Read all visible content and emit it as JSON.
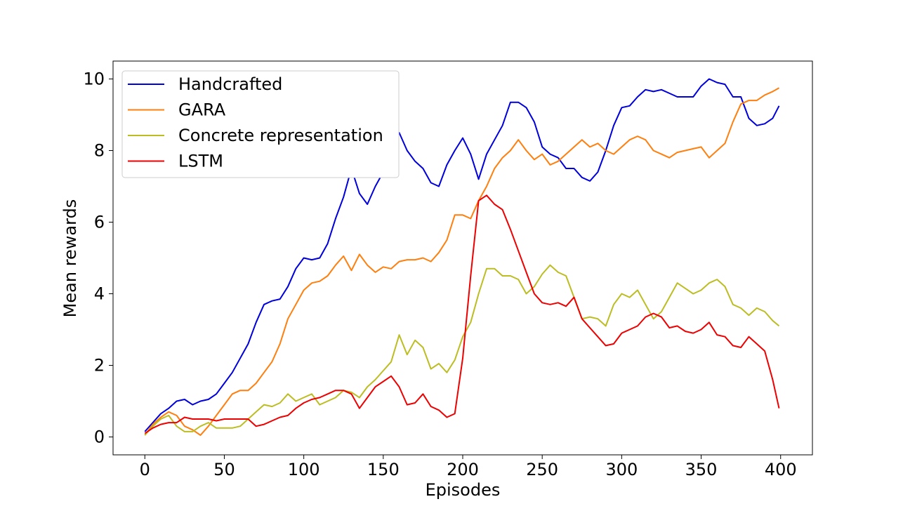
{
  "chart_data": {
    "type": "line",
    "title": "",
    "xlabel": "Episodes",
    "ylabel": "Mean rewards",
    "xlim": [
      -20,
      420
    ],
    "ylim": [
      -0.5,
      10.5
    ],
    "xticks": [
      "0",
      "50",
      "100",
      "150",
      "200",
      "250",
      "300",
      "350",
      "400"
    ],
    "yticks": [
      "0",
      "2",
      "4",
      "6",
      "8",
      "10"
    ],
    "grid": false,
    "legend_position": "top-left",
    "series": [
      {
        "name": "Handcrafted",
        "color": "#0000dd",
        "points": [
          [
            0,
            0.15
          ],
          [
            5,
            0.4
          ],
          [
            10,
            0.65
          ],
          [
            15,
            0.8
          ],
          [
            20,
            1.0
          ],
          [
            25,
            1.05
          ],
          [
            30,
            0.9
          ],
          [
            35,
            1.0
          ],
          [
            40,
            1.05
          ],
          [
            45,
            1.2
          ],
          [
            50,
            1.5
          ],
          [
            55,
            1.8
          ],
          [
            60,
            2.2
          ],
          [
            65,
            2.6
          ],
          [
            70,
            3.2
          ],
          [
            75,
            3.7
          ],
          [
            80,
            3.8
          ],
          [
            85,
            3.85
          ],
          [
            90,
            4.2
          ],
          [
            95,
            4.7
          ],
          [
            100,
            5.0
          ],
          [
            105,
            4.95
          ],
          [
            110,
            5.0
          ],
          [
            115,
            5.4
          ],
          [
            120,
            6.1
          ],
          [
            125,
            6.7
          ],
          [
            130,
            7.5
          ],
          [
            135,
            6.8
          ],
          [
            140,
            6.5
          ],
          [
            145,
            7.0
          ],
          [
            150,
            7.4
          ],
          [
            155,
            8.1
          ],
          [
            160,
            8.5
          ],
          [
            165,
            8.0
          ],
          [
            170,
            7.7
          ],
          [
            175,
            7.5
          ],
          [
            180,
            7.1
          ],
          [
            185,
            7.0
          ],
          [
            190,
            7.6
          ],
          [
            195,
            8.0
          ],
          [
            200,
            8.35
          ],
          [
            205,
            7.9
          ],
          [
            210,
            7.2
          ],
          [
            215,
            7.9
          ],
          [
            220,
            8.3
          ],
          [
            225,
            8.7
          ],
          [
            230,
            9.35
          ],
          [
            235,
            9.35
          ],
          [
            240,
            9.2
          ],
          [
            245,
            8.8
          ],
          [
            250,
            8.1
          ],
          [
            255,
            7.9
          ],
          [
            260,
            7.8
          ],
          [
            265,
            7.5
          ],
          [
            270,
            7.5
          ],
          [
            275,
            7.25
          ],
          [
            280,
            7.15
          ],
          [
            285,
            7.4
          ],
          [
            290,
            8.0
          ],
          [
            295,
            8.7
          ],
          [
            300,
            9.2
          ],
          [
            305,
            9.25
          ],
          [
            310,
            9.5
          ],
          [
            315,
            9.7
          ],
          [
            320,
            9.65
          ],
          [
            325,
            9.7
          ],
          [
            330,
            9.6
          ],
          [
            335,
            9.5
          ],
          [
            340,
            9.5
          ],
          [
            345,
            9.5
          ],
          [
            350,
            9.8
          ],
          [
            355,
            10.0
          ],
          [
            360,
            9.9
          ],
          [
            365,
            9.85
          ],
          [
            370,
            9.5
          ],
          [
            375,
            9.5
          ],
          [
            380,
            8.9
          ],
          [
            385,
            8.7
          ],
          [
            390,
            8.75
          ],
          [
            395,
            8.9
          ],
          [
            399,
            9.25
          ]
        ]
      },
      {
        "name": "GARA",
        "color": "#ff7f0e",
        "points": [
          [
            0,
            0.05
          ],
          [
            5,
            0.35
          ],
          [
            10,
            0.55
          ],
          [
            15,
            0.7
          ],
          [
            20,
            0.6
          ],
          [
            25,
            0.3
          ],
          [
            30,
            0.2
          ],
          [
            35,
            0.05
          ],
          [
            40,
            0.3
          ],
          [
            45,
            0.6
          ],
          [
            50,
            0.9
          ],
          [
            55,
            1.2
          ],
          [
            60,
            1.3
          ],
          [
            65,
            1.3
          ],
          [
            70,
            1.5
          ],
          [
            75,
            1.8
          ],
          [
            80,
            2.1
          ],
          [
            85,
            2.6
          ],
          [
            90,
            3.3
          ],
          [
            95,
            3.7
          ],
          [
            100,
            4.1
          ],
          [
            105,
            4.3
          ],
          [
            110,
            4.35
          ],
          [
            115,
            4.5
          ],
          [
            120,
            4.8
          ],
          [
            125,
            5.05
          ],
          [
            130,
            4.65
          ],
          [
            135,
            5.1
          ],
          [
            140,
            4.8
          ],
          [
            145,
            4.6
          ],
          [
            150,
            4.75
          ],
          [
            155,
            4.7
          ],
          [
            160,
            4.9
          ],
          [
            165,
            4.95
          ],
          [
            170,
            4.95
          ],
          [
            175,
            5.0
          ],
          [
            180,
            4.9
          ],
          [
            185,
            5.15
          ],
          [
            190,
            5.5
          ],
          [
            195,
            6.2
          ],
          [
            200,
            6.2
          ],
          [
            205,
            6.1
          ],
          [
            210,
            6.6
          ],
          [
            215,
            7.0
          ],
          [
            220,
            7.5
          ],
          [
            225,
            7.8
          ],
          [
            230,
            8.0
          ],
          [
            235,
            8.3
          ],
          [
            240,
            8.0
          ],
          [
            245,
            7.75
          ],
          [
            250,
            7.9
          ],
          [
            255,
            7.6
          ],
          [
            260,
            7.7
          ],
          [
            265,
            7.9
          ],
          [
            270,
            8.1
          ],
          [
            275,
            8.3
          ],
          [
            280,
            8.1
          ],
          [
            285,
            8.2
          ],
          [
            290,
            8.0
          ],
          [
            295,
            7.9
          ],
          [
            300,
            8.1
          ],
          [
            305,
            8.3
          ],
          [
            310,
            8.4
          ],
          [
            315,
            8.3
          ],
          [
            320,
            8.0
          ],
          [
            325,
            7.9
          ],
          [
            330,
            7.8
          ],
          [
            335,
            7.95
          ],
          [
            340,
            8.0
          ],
          [
            345,
            8.05
          ],
          [
            350,
            8.1
          ],
          [
            355,
            7.8
          ],
          [
            360,
            8.0
          ],
          [
            365,
            8.2
          ],
          [
            370,
            8.8
          ],
          [
            375,
            9.3
          ],
          [
            380,
            9.4
          ],
          [
            385,
            9.4
          ],
          [
            390,
            9.55
          ],
          [
            395,
            9.65
          ],
          [
            399,
            9.75
          ]
        ]
      },
      {
        "name": "Concrete representation",
        "color": "#bcbd22",
        "points": [
          [
            0,
            0.05
          ],
          [
            5,
            0.3
          ],
          [
            10,
            0.5
          ],
          [
            15,
            0.6
          ],
          [
            20,
            0.3
          ],
          [
            25,
            0.15
          ],
          [
            30,
            0.15
          ],
          [
            35,
            0.3
          ],
          [
            40,
            0.4
          ],
          [
            45,
            0.25
          ],
          [
            50,
            0.25
          ],
          [
            55,
            0.25
          ],
          [
            60,
            0.3
          ],
          [
            65,
            0.5
          ],
          [
            70,
            0.7
          ],
          [
            75,
            0.9
          ],
          [
            80,
            0.85
          ],
          [
            85,
            0.95
          ],
          [
            90,
            1.2
          ],
          [
            95,
            1.0
          ],
          [
            100,
            1.1
          ],
          [
            105,
            1.2
          ],
          [
            110,
            0.9
          ],
          [
            115,
            1.0
          ],
          [
            120,
            1.1
          ],
          [
            125,
            1.3
          ],
          [
            130,
            1.25
          ],
          [
            135,
            1.1
          ],
          [
            140,
            1.4
          ],
          [
            145,
            1.6
          ],
          [
            150,
            1.85
          ],
          [
            155,
            2.1
          ],
          [
            160,
            2.85
          ],
          [
            165,
            2.3
          ],
          [
            170,
            2.7
          ],
          [
            175,
            2.5
          ],
          [
            180,
            1.9
          ],
          [
            185,
            2.05
          ],
          [
            190,
            1.8
          ],
          [
            195,
            2.15
          ],
          [
            200,
            2.8
          ],
          [
            205,
            3.2
          ],
          [
            210,
            4.0
          ],
          [
            215,
            4.7
          ],
          [
            220,
            4.7
          ],
          [
            225,
            4.5
          ],
          [
            230,
            4.5
          ],
          [
            235,
            4.4
          ],
          [
            240,
            4.0
          ],
          [
            245,
            4.2
          ],
          [
            250,
            4.55
          ],
          [
            255,
            4.8
          ],
          [
            260,
            4.6
          ],
          [
            265,
            4.5
          ],
          [
            270,
            3.9
          ],
          [
            275,
            3.3
          ],
          [
            280,
            3.35
          ],
          [
            285,
            3.3
          ],
          [
            290,
            3.1
          ],
          [
            295,
            3.7
          ],
          [
            300,
            4.0
          ],
          [
            305,
            3.9
          ],
          [
            310,
            4.1
          ],
          [
            315,
            3.7
          ],
          [
            320,
            3.3
          ],
          [
            325,
            3.5
          ],
          [
            330,
            3.9
          ],
          [
            335,
            4.3
          ],
          [
            340,
            4.15
          ],
          [
            345,
            4.0
          ],
          [
            350,
            4.1
          ],
          [
            355,
            4.3
          ],
          [
            360,
            4.4
          ],
          [
            365,
            4.2
          ],
          [
            370,
            3.7
          ],
          [
            375,
            3.6
          ],
          [
            380,
            3.4
          ],
          [
            385,
            3.6
          ],
          [
            390,
            3.5
          ],
          [
            395,
            3.25
          ],
          [
            399,
            3.1
          ]
        ]
      },
      {
        "name": "LSTM",
        "color": "#ee0000",
        "points": [
          [
            0,
            0.1
          ],
          [
            5,
            0.25
          ],
          [
            10,
            0.35
          ],
          [
            15,
            0.4
          ],
          [
            20,
            0.4
          ],
          [
            25,
            0.55
          ],
          [
            30,
            0.5
          ],
          [
            35,
            0.5
          ],
          [
            40,
            0.5
          ],
          [
            45,
            0.45
          ],
          [
            50,
            0.5
          ],
          [
            55,
            0.5
          ],
          [
            60,
            0.5
          ],
          [
            65,
            0.5
          ],
          [
            70,
            0.3
          ],
          [
            75,
            0.35
          ],
          [
            80,
            0.45
          ],
          [
            85,
            0.55
          ],
          [
            90,
            0.6
          ],
          [
            95,
            0.8
          ],
          [
            100,
            0.95
          ],
          [
            105,
            1.05
          ],
          [
            110,
            1.1
          ],
          [
            115,
            1.2
          ],
          [
            120,
            1.3
          ],
          [
            125,
            1.3
          ],
          [
            130,
            1.2
          ],
          [
            135,
            0.8
          ],
          [
            140,
            1.1
          ],
          [
            145,
            1.4
          ],
          [
            150,
            1.55
          ],
          [
            155,
            1.7
          ],
          [
            160,
            1.4
          ],
          [
            165,
            0.9
          ],
          [
            170,
            0.95
          ],
          [
            175,
            1.2
          ],
          [
            180,
            0.85
          ],
          [
            185,
            0.75
          ],
          [
            190,
            0.55
          ],
          [
            195,
            0.65
          ],
          [
            200,
            2.2
          ],
          [
            205,
            4.5
          ],
          [
            210,
            6.6
          ],
          [
            215,
            6.75
          ],
          [
            220,
            6.5
          ],
          [
            225,
            6.35
          ],
          [
            230,
            5.8
          ],
          [
            235,
            5.2
          ],
          [
            240,
            4.6
          ],
          [
            245,
            4.0
          ],
          [
            250,
            3.75
          ],
          [
            255,
            3.7
          ],
          [
            260,
            3.75
          ],
          [
            265,
            3.65
          ],
          [
            270,
            3.9
          ],
          [
            275,
            3.3
          ],
          [
            280,
            3.05
          ],
          [
            285,
            2.8
          ],
          [
            290,
            2.55
          ],
          [
            295,
            2.6
          ],
          [
            300,
            2.9
          ],
          [
            305,
            3.0
          ],
          [
            310,
            3.1
          ],
          [
            315,
            3.35
          ],
          [
            320,
            3.45
          ],
          [
            325,
            3.35
          ],
          [
            330,
            3.05
          ],
          [
            335,
            3.1
          ],
          [
            340,
            2.95
          ],
          [
            345,
            2.9
          ],
          [
            350,
            3.0
          ],
          [
            355,
            3.2
          ],
          [
            360,
            2.85
          ],
          [
            365,
            2.8
          ],
          [
            370,
            2.55
          ],
          [
            375,
            2.5
          ],
          [
            380,
            2.8
          ],
          [
            385,
            2.6
          ],
          [
            390,
            2.4
          ],
          [
            395,
            1.6
          ],
          [
            399,
            0.8
          ]
        ]
      }
    ]
  }
}
